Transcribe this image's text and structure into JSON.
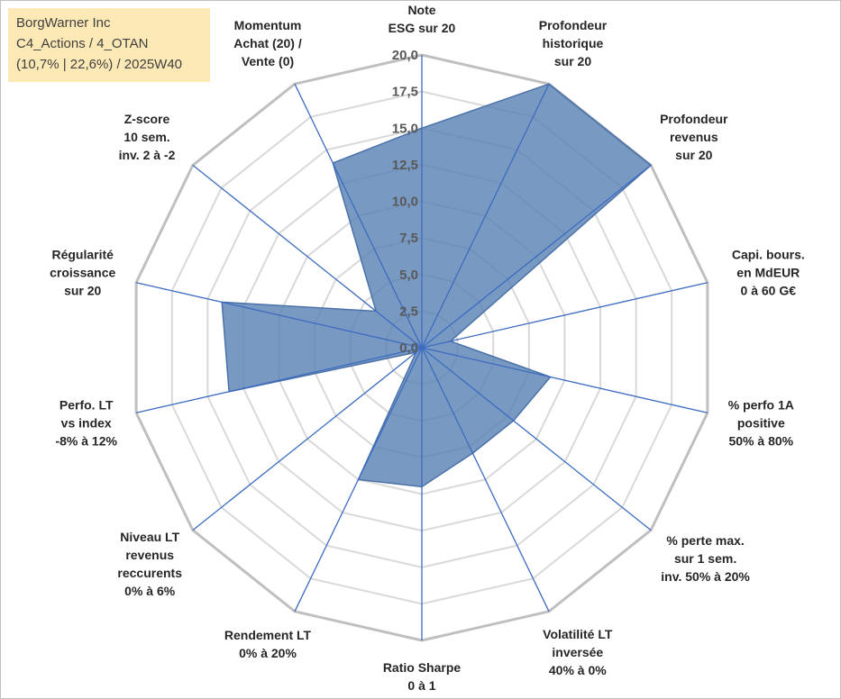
{
  "info": {
    "line1": "BorgWarner Inc",
    "line2": "C4_Actions / 4_OTAN",
    "line3": "(10,7% | 22,6%) / 2025W40"
  },
  "chart_data": {
    "type": "radar",
    "title": "",
    "axes": [
      [
        "Note",
        "ESG sur 20"
      ],
      [
        "Profondeur",
        "historique",
        "sur 20"
      ],
      [
        "Profondeur",
        "revenus",
        "sur 20"
      ],
      [
        "Capi. bours.",
        "en MdEUR",
        "0 à 60 G€"
      ],
      [
        "% perfo 1A",
        "positive",
        "50% à 80%"
      ],
      [
        "% perte max.",
        "sur 1 sem.",
        "inv. 50% à 20%"
      ],
      [
        "Volatilité LT",
        "inversée",
        "40% à 0%"
      ],
      [
        "Ratio Sharpe",
        "0 à 1"
      ],
      [
        "Rendement LT",
        "0% à 20%"
      ],
      [
        "Niveau LT",
        "revenus",
        "reccurents",
        "0% à 6%"
      ],
      [
        "Perfo. LT",
        "vs index",
        "-8% à 12%"
      ],
      [
        "Régularité",
        "croissance",
        "sur 20"
      ],
      [
        "Z-score",
        "10 sem.",
        "inv. 2 à -2"
      ],
      [
        "Momentum",
        "Achat (20) /",
        "Vente (0)"
      ]
    ],
    "values": [
      15.0,
      20.0,
      20.0,
      2.0,
      9.0,
      8.0,
      8.0,
      9.5,
      10.0,
      0.5,
      13.5,
      14.0,
      4.0,
      14.0
    ],
    "rmin": 0,
    "rmax": 20,
    "ticks": [
      "0,0",
      "2,5",
      "5,0",
      "7,5",
      "10,0",
      "12,5",
      "15,0",
      "17,5",
      "20,0"
    ],
    "grid": true,
    "legend": "none",
    "colors": {
      "fill": "#5a83b5",
      "fill_opacity": 0.82,
      "stroke": "#4a72a8",
      "spoke": "#3d6cc0",
      "grid_outer": "#bfbfbf",
      "grid_inner": "#d9d9d9"
    }
  }
}
